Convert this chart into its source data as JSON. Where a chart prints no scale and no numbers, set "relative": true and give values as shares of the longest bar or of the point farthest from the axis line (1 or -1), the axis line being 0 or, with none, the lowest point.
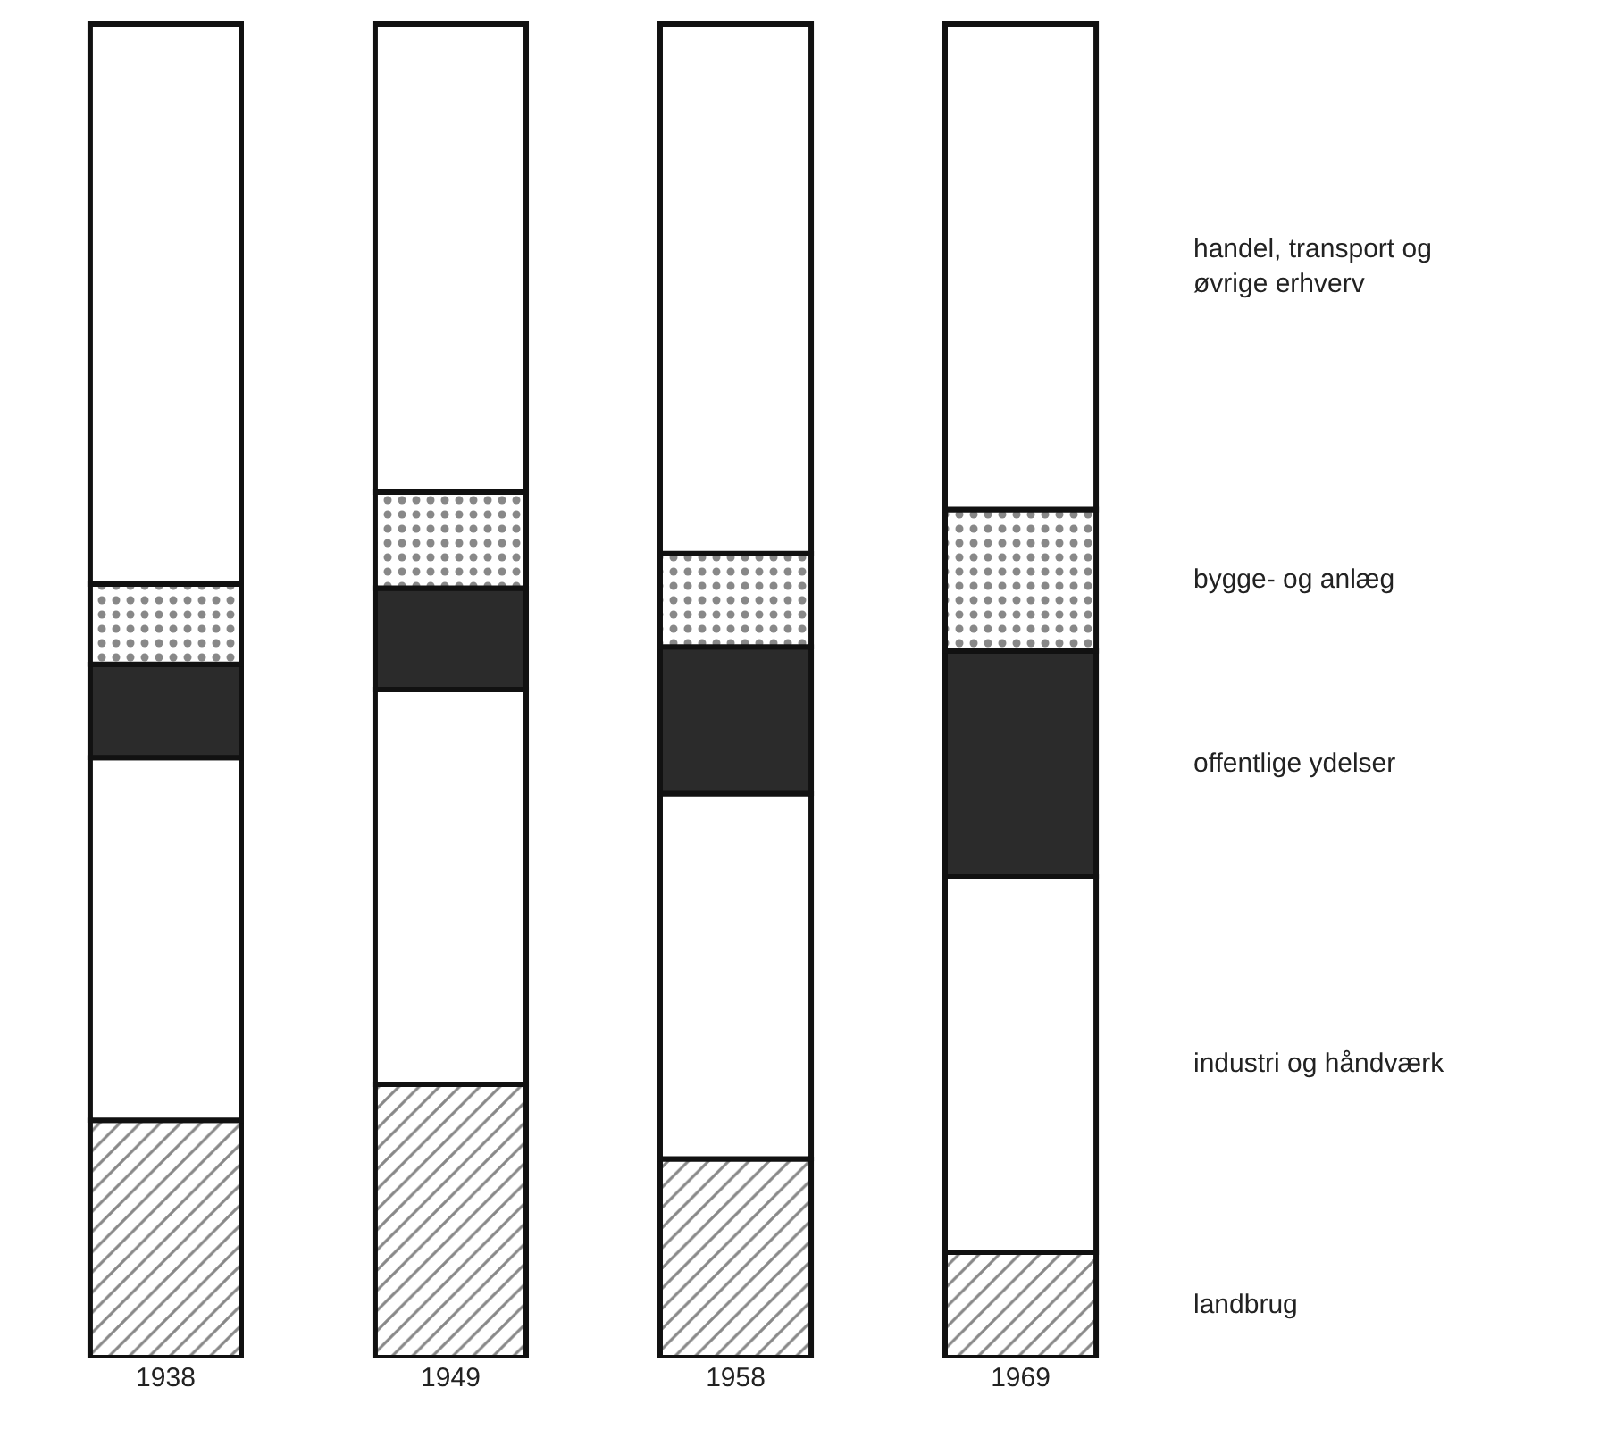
{
  "chart_data": {
    "type": "bar",
    "stacked": true,
    "relative": true,
    "tick_labels": "x",
    "legend": false,
    "categories": [
      "1938",
      "1949",
      "1958",
      "1969"
    ],
    "series": [
      {
        "name": "landbrug",
        "color": "#111111",
        "values": [
          0.178,
          0.205,
          0.149,
          0.079
        ]
      },
      {
        "name": "industri og håndværk",
        "color": "#ffffff",
        "values": [
          0.272,
          0.296,
          0.274,
          0.282
        ]
      },
      {
        "name": "offentlige ydelser",
        "color": "#2b2b2b",
        "values": [
          0.07,
          0.076,
          0.11,
          0.169
        ]
      },
      {
        "name": "bygge- og anlæg",
        "color": "#111111",
        "values": [
          0.06,
          0.072,
          0.07,
          0.106
        ]
      },
      {
        "name": "handel, transport og\nøvrige erhverv",
        "color": "#ffffff",
        "values": [
          0.42,
          0.351,
          0.397,
          0.364
        ]
      }
    ]
  }
}
